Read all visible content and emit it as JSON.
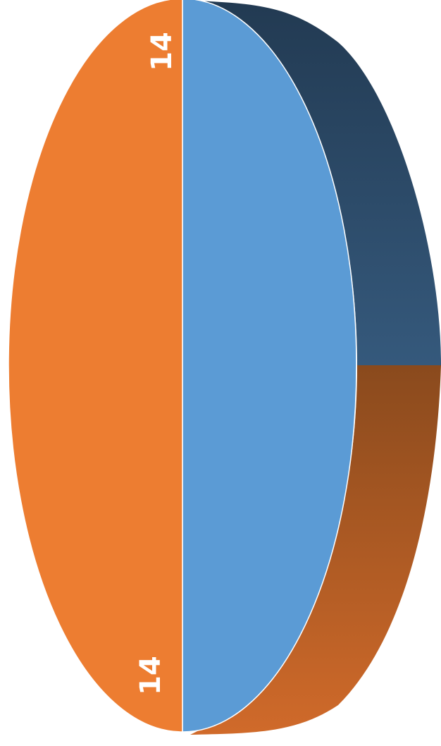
{
  "chart_data": {
    "type": "pie",
    "values": [
      14,
      14
    ],
    "labels": [
      "14",
      "14"
    ],
    "colors": [
      "#5B9BD5",
      "#ED7D31"
    ],
    "side_colors": [
      [
        "#223a52",
        "#35597c"
      ],
      [
        "#8a4a1d",
        "#d06a2a"
      ]
    ]
  }
}
